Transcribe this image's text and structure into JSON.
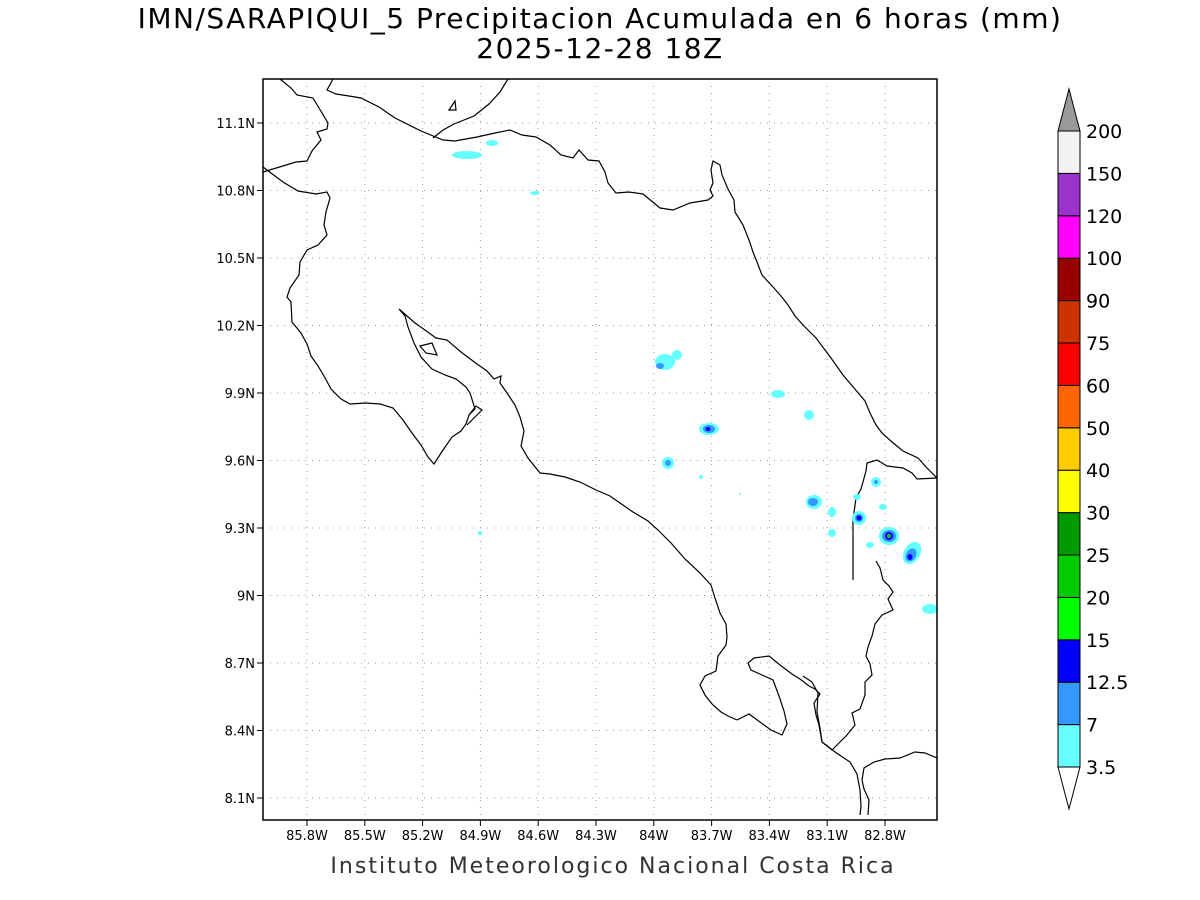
{
  "title": {
    "line1": "IMN/SARAPIQUI_5 Precipitacion Acumulada en 6 horas (mm)",
    "line2": "2025-12-28 18Z"
  },
  "footer": "Instituto Meteorologico Nacional Costa Rica",
  "axes": {
    "lat_labels": [
      "11.1N",
      "10.8N",
      "10.5N",
      "10.2N",
      "9.9N",
      "9.6N",
      "9.3N",
      "9N",
      "8.7N",
      "8.4N",
      "8.1N"
    ],
    "lon_labels": [
      "85.8W",
      "85.5W",
      "85.2W",
      "84.9W",
      "84.6W",
      "84.3W",
      "84W",
      "83.7W",
      "83.4W",
      "83.1W",
      "82.8W"
    ],
    "lat_values": [
      11.1,
      10.8,
      10.5,
      10.2,
      9.9,
      9.6,
      9.3,
      9.0,
      8.7,
      8.4,
      8.1
    ],
    "lon_values": [
      -85.8,
      -85.5,
      -85.2,
      -84.9,
      -84.6,
      -84.3,
      -84.0,
      -83.7,
      -83.4,
      -83.1,
      -82.8
    ],
    "grid": "dotted"
  },
  "colorbar": {
    "labels": [
      "3.5",
      "7",
      "12.5",
      "15",
      "20",
      "25",
      "30",
      "40",
      "50",
      "60",
      "75",
      "90",
      "100",
      "120",
      "150",
      "200"
    ],
    "colors": [
      "#66ffff",
      "#3399ff",
      "#0000ff",
      "#00ff00",
      "#00cc00",
      "#009900",
      "#ffff00",
      "#ffcc00",
      "#ff6600",
      "#ff0000",
      "#cc3300",
      "#990000",
      "#ff00ff",
      "#9933cc",
      "#f2f2f2",
      "#999999"
    ]
  }
}
